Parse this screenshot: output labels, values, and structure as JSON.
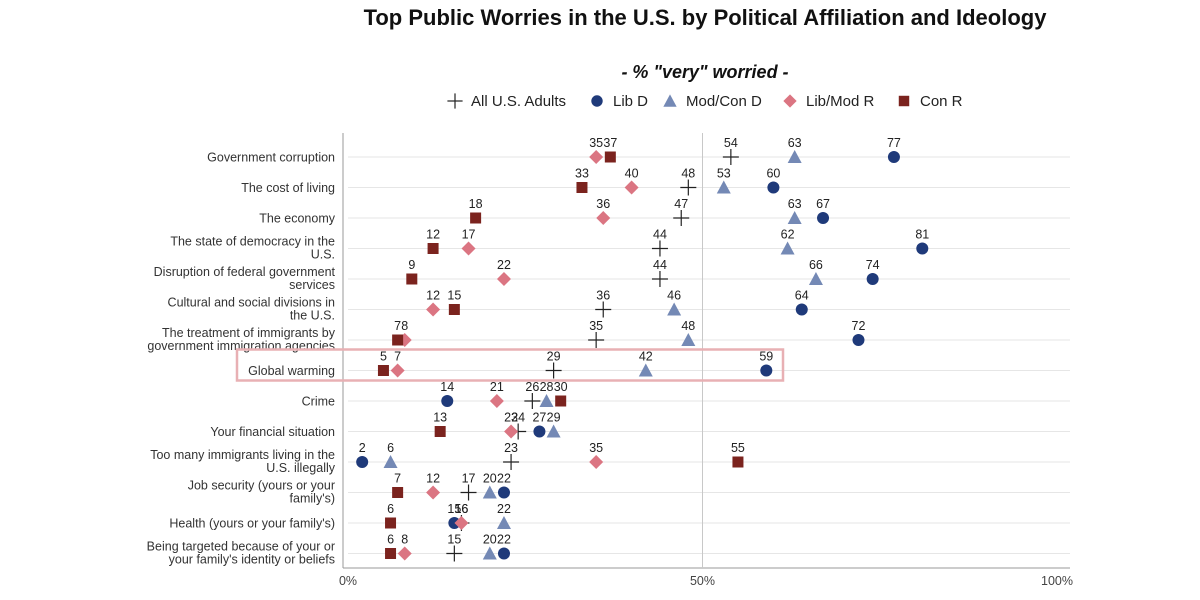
{
  "chart_data": {
    "type": "scatter",
    "title": "Top Public Worries in the U.S. by Political Affiliation and Ideology",
    "subtitle": "- % \"very\" worried -",
    "x_ticks": [
      "0%",
      "50%",
      "100%"
    ],
    "xlim": [
      0,
      100
    ],
    "grid": true,
    "legend_position": "top",
    "highlighted_category": "Global warming",
    "categories": [
      "Government corruption",
      "The cost of living",
      "The economy",
      "The state of democracy in the U.S.",
      "Disruption of federal government services",
      "Cultural and social divisions in the U.S.",
      "The treatment of immigrants by government immigration agencies",
      "Global warming",
      "Crime",
      "Your financial situation",
      "Too many immigrants living in the U.S. illegally",
      "Job security (yours or your family's)",
      "Health (yours or your family's)",
      "Being targeted because of your or your family's identity or beliefs"
    ],
    "category_lines": [
      [
        "Government corruption"
      ],
      [
        "The cost of living"
      ],
      [
        "The economy"
      ],
      [
        "The state of democracy in the",
        "U.S."
      ],
      [
        "Disruption of federal government",
        "services"
      ],
      [
        "Cultural and social divisions in",
        "the U.S."
      ],
      [
        "The treatment of immigrants by",
        "government immigration agencies"
      ],
      [
        "Global warming"
      ],
      [
        "Crime"
      ],
      [
        "Your financial situation"
      ],
      [
        "Too many immigrants living in the",
        "U.S. illegally"
      ],
      [
        "Job security (yours or your",
        "family's)"
      ],
      [
        "Health (yours or your family's)"
      ],
      [
        "Being targeted because of your or",
        "your family's identity or beliefs"
      ]
    ],
    "series": [
      {
        "name": "All U.S. Adults",
        "marker": "plus",
        "color": "#222222",
        "values": [
          54,
          48,
          47,
          44,
          44,
          36,
          35,
          29,
          26,
          24,
          23,
          17,
          16,
          15
        ]
      },
      {
        "name": "Lib D",
        "marker": "circle",
        "color": "#1f3a7a",
        "values": [
          77,
          60,
          67,
          81,
          74,
          64,
          72,
          59,
          14,
          27,
          2,
          22,
          15,
          22
        ]
      },
      {
        "name": "Mod/Con D",
        "marker": "triangle",
        "color": "#7489b5",
        "values": [
          63,
          53,
          63,
          62,
          66,
          46,
          48,
          42,
          28,
          29,
          6,
          20,
          22,
          20
        ]
      },
      {
        "name": "Lib/Mod R",
        "marker": "diamond",
        "color": "#db7582",
        "values": [
          35,
          40,
          36,
          17,
          22,
          12,
          8,
          7,
          21,
          23,
          35,
          12,
          16,
          8
        ]
      },
      {
        "name": "Con R",
        "marker": "square",
        "color": "#7b231e",
        "values": [
          37,
          33,
          18,
          12,
          9,
          15,
          7,
          5,
          30,
          13,
          55,
          7,
          6,
          6
        ]
      }
    ]
  }
}
